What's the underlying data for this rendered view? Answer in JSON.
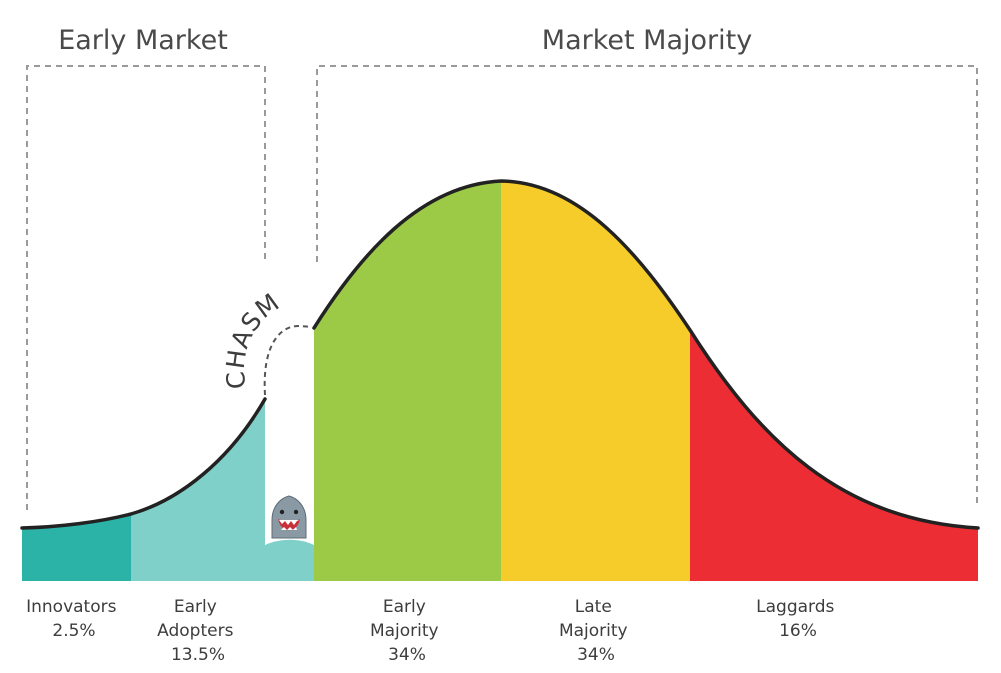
{
  "groups": {
    "early_market": "Early Market",
    "market_majority": "Market Majority"
  },
  "chasm_label": "CHASM",
  "segments": [
    {
      "name": "Innovators",
      "percent": "2.5%",
      "color": "#2bb3a8"
    },
    {
      "name": "Early Adopters",
      "percent": "13.5%",
      "color": "#7fd0c9"
    },
    {
      "name": "Early Majority",
      "percent": "34%",
      "color": "#9cca47"
    },
    {
      "name": "Late Majority",
      "percent": "34%",
      "color": "#f5cc2a"
    },
    {
      "name": "Laggards",
      "percent": "16%",
      "color": "#ec2d33"
    }
  ],
  "colors": {
    "curve": "#222222",
    "bracket": "#9a9a9a",
    "chasm_fill": "#7fd0c9"
  },
  "icons": [
    "shark-icon"
  ]
}
